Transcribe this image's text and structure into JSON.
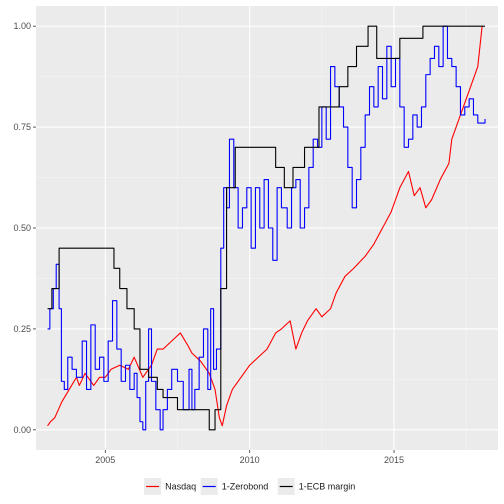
{
  "chart_data": {
    "type": "line",
    "title": "",
    "xlabel": "",
    "ylabel": "",
    "xlim": [
      2002.6,
      2018.6
    ],
    "ylim": [
      -0.05,
      1.05
    ],
    "x_ticks": [
      2005,
      2010,
      2015
    ],
    "x_tick_labels": [
      "2005",
      "2010",
      "2015"
    ],
    "y_ticks": [
      0,
      0.25,
      0.5,
      0.75,
      1
    ],
    "y_tick_labels": [
      "0.00",
      "0.25",
      "0.50",
      "0.75",
      "1.00"
    ],
    "grid": true,
    "legend_position": "bottom",
    "series": [
      {
        "name": "Nasdaq",
        "color": "#ff0000",
        "step": false,
        "x": [
          2003.0,
          2003.1,
          2003.25,
          2003.5,
          2003.75,
          2004.0,
          2004.1,
          2004.3,
          2004.6,
          2004.8,
          2005.0,
          2005.2,
          2005.5,
          2005.8,
          2006.0,
          2006.3,
          2006.6,
          2006.8,
          2007.0,
          2007.3,
          2007.6,
          2007.85,
          2008.0,
          2008.3,
          2008.6,
          2008.8,
          2008.95,
          2009.05,
          2009.2,
          2009.4,
          2009.7,
          2010.0,
          2010.3,
          2010.6,
          2010.9,
          2011.1,
          2011.4,
          2011.6,
          2011.8,
          2012.0,
          2012.3,
          2012.5,
          2012.8,
          2013.0,
          2013.3,
          2013.6,
          2014.0,
          2014.3,
          2014.6,
          2014.9,
          2015.2,
          2015.5,
          2015.7,
          2015.9,
          2016.1,
          2016.3,
          2016.6,
          2016.9,
          2017.0,
          2017.3,
          2017.6,
          2017.9,
          2018.05
        ],
        "y": [
          0.01,
          0.02,
          0.03,
          0.07,
          0.1,
          0.13,
          0.11,
          0.14,
          0.11,
          0.13,
          0.13,
          0.15,
          0.16,
          0.15,
          0.18,
          0.13,
          0.16,
          0.2,
          0.2,
          0.22,
          0.24,
          0.21,
          0.19,
          0.17,
          0.14,
          0.1,
          0.03,
          0.01,
          0.06,
          0.1,
          0.13,
          0.16,
          0.18,
          0.2,
          0.24,
          0.25,
          0.27,
          0.2,
          0.24,
          0.27,
          0.3,
          0.28,
          0.3,
          0.34,
          0.38,
          0.4,
          0.43,
          0.46,
          0.5,
          0.54,
          0.6,
          0.64,
          0.58,
          0.6,
          0.55,
          0.57,
          0.62,
          0.66,
          0.72,
          0.78,
          0.84,
          0.9,
          1.0
        ]
      },
      {
        "name": "1-Zerobond",
        "color": "#0000ff",
        "step": true,
        "x": [
          2003.0,
          2003.08,
          2003.2,
          2003.3,
          2003.4,
          2003.48,
          2003.58,
          2003.7,
          2003.85,
          2004.0,
          2004.2,
          2004.35,
          2004.5,
          2004.65,
          2004.8,
          2004.95,
          2005.1,
          2005.25,
          2005.4,
          2005.55,
          2005.7,
          2005.85,
          2006.0,
          2006.1,
          2006.2,
          2006.3,
          2006.4,
          2006.5,
          2006.6,
          2006.75,
          2006.9,
          2007.0,
          2007.15,
          2007.3,
          2007.5,
          2007.7,
          2007.9,
          2008.0,
          2008.1,
          2008.25,
          2008.4,
          2008.55,
          2008.65,
          2008.75,
          2008.85,
          2009.0,
          2009.1,
          2009.2,
          2009.3,
          2009.45,
          2009.6,
          2009.75,
          2009.9,
          2010.05,
          2010.2,
          2010.35,
          2010.5,
          2010.65,
          2010.8,
          2010.95,
          2011.1,
          2011.3,
          2011.45,
          2011.6,
          2011.75,
          2011.9,
          2012.05,
          2012.2,
          2012.35,
          2012.5,
          2012.65,
          2012.8,
          2012.95,
          2013.1,
          2013.25,
          2013.4,
          2013.55,
          2013.7,
          2013.85,
          2014.0,
          2014.15,
          2014.3,
          2014.45,
          2014.6,
          2014.75,
          2014.9,
          2015.05,
          2015.2,
          2015.35,
          2015.5,
          2015.65,
          2015.8,
          2015.95,
          2016.1,
          2016.25,
          2016.4,
          2016.55,
          2016.7,
          2016.85,
          2017.0,
          2017.15,
          2017.3,
          2017.45,
          2017.6,
          2017.75,
          2017.9,
          2018.05,
          2018.15
        ],
        "y": [
          0.25,
          0.3,
          0.35,
          0.41,
          0.3,
          0.12,
          0.1,
          0.18,
          0.15,
          0.13,
          0.22,
          0.1,
          0.26,
          0.15,
          0.18,
          0.12,
          0.22,
          0.32,
          0.2,
          0.12,
          0.16,
          0.1,
          0.14,
          0.08,
          0.02,
          0.0,
          0.12,
          0.25,
          0.12,
          0.05,
          0.0,
          0.05,
          0.1,
          0.15,
          0.12,
          0.05,
          0.15,
          0.05,
          0.1,
          0.18,
          0.25,
          0.1,
          0.3,
          0.15,
          0.2,
          0.45,
          0.6,
          0.55,
          0.72,
          0.6,
          0.5,
          0.55,
          0.6,
          0.45,
          0.6,
          0.5,
          0.62,
          0.5,
          0.42,
          0.6,
          0.55,
          0.5,
          0.6,
          0.62,
          0.5,
          0.55,
          0.65,
          0.72,
          0.7,
          0.8,
          0.72,
          0.9,
          0.85,
          0.8,
          0.75,
          0.65,
          0.55,
          0.62,
          0.7,
          0.78,
          0.85,
          0.8,
          0.9,
          0.82,
          0.95,
          0.85,
          0.92,
          0.8,
          0.7,
          0.72,
          0.78,
          0.75,
          0.8,
          0.88,
          0.92,
          0.95,
          0.9,
          1.0,
          0.92,
          0.9,
          0.85,
          0.78,
          0.8,
          0.82,
          0.78,
          0.76,
          0.76,
          0.77
        ]
      },
      {
        "name": "1-ECB margin",
        "color": "#000000",
        "step": true,
        "x": [
          2003.0,
          2003.15,
          2003.4,
          2005.3,
          2005.5,
          2005.75,
          2006.0,
          2006.2,
          2006.5,
          2006.8,
          2007.0,
          2007.5,
          2008.0,
          2008.6,
          2008.8,
          2009.0,
          2009.2,
          2009.5,
          2010.0,
          2010.5,
          2010.9,
          2011.2,
          2011.5,
          2011.9,
          2012.4,
          2013.1,
          2013.4,
          2013.7,
          2014.1,
          2014.4,
          2015.2,
          2016.0,
          2016.5,
          2018.15
        ],
        "y": [
          0.3,
          0.35,
          0.45,
          0.4,
          0.35,
          0.3,
          0.25,
          0.15,
          0.13,
          0.1,
          0.08,
          0.05,
          0.05,
          0.0,
          0.05,
          0.35,
          0.6,
          0.7,
          0.7,
          0.7,
          0.65,
          0.6,
          0.65,
          0.7,
          0.8,
          0.85,
          0.9,
          0.95,
          1.0,
          0.92,
          0.97,
          1.0,
          1.0,
          1.0
        ]
      }
    ]
  }
}
